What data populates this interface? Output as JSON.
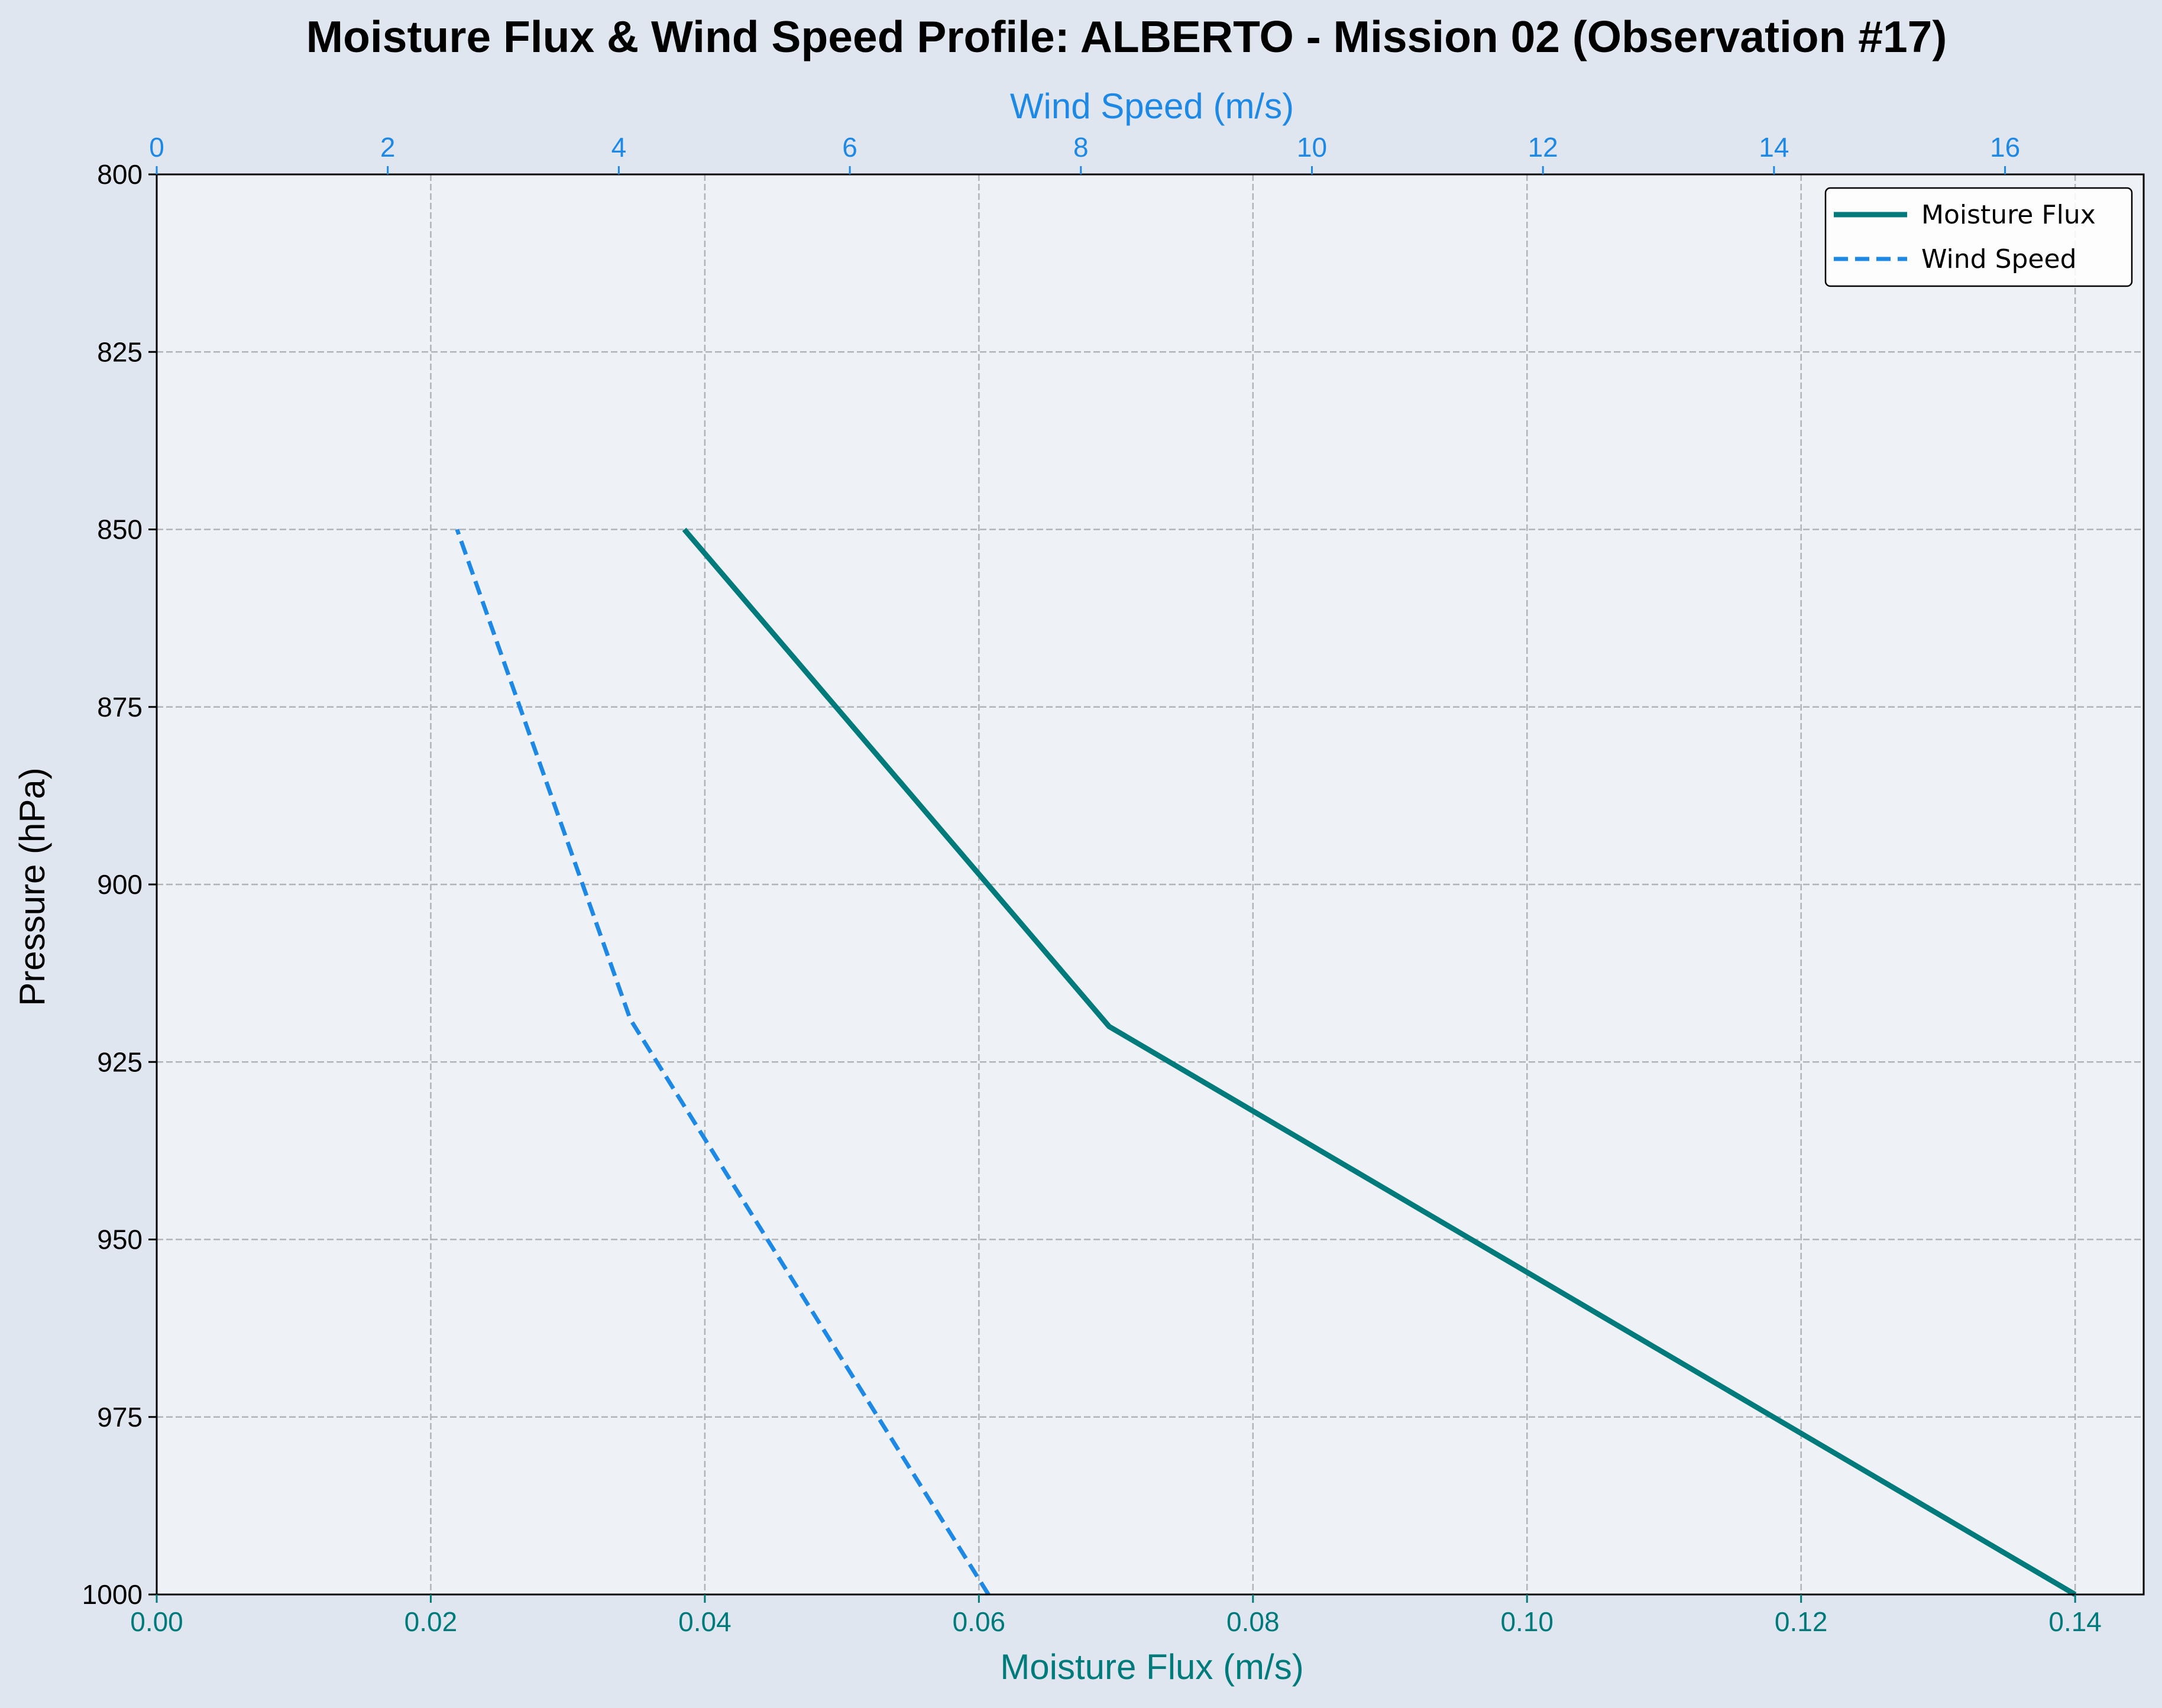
{
  "chart_data": {
    "type": "line",
    "title": "Moisture Flux & Wind Speed Profile: ALBERTO - Mission 02 (Observation #17)",
    "ylabel": "Pressure (hPa)",
    "xlabel_bottom": "Moisture Flux (m/s)",
    "xlabel_top": "Wind Speed (m/s)",
    "y_axis": {
      "range": [
        800,
        1000
      ],
      "inverted": true,
      "ticks": [
        800,
        825,
        850,
        875,
        900,
        925,
        950,
        975,
        1000
      ]
    },
    "x_bottom_axis": {
      "range": [
        0.0,
        0.145
      ],
      "ticks": [
        0.0,
        0.02,
        0.04,
        0.06,
        0.08,
        0.1,
        0.12,
        0.14
      ],
      "tick_labels": [
        "0.00",
        "0.02",
        "0.04",
        "0.06",
        "0.08",
        "0.10",
        "0.12",
        "0.14"
      ]
    },
    "x_top_axis": {
      "range": [
        0,
        17.2
      ],
      "ticks": [
        0,
        2,
        4,
        6,
        8,
        10,
        12,
        14,
        16
      ],
      "tick_labels": [
        "0",
        "2",
        "4",
        "6",
        "8",
        "10",
        "12",
        "14",
        "16"
      ]
    },
    "grid": true,
    "legend_position": "top-right",
    "series": [
      {
        "name": "Moisture Flux",
        "axis": "bottom",
        "color": "#007a7a",
        "style": "solid",
        "points": [
          [
            0.14,
            1000
          ],
          [
            0.0695,
            920
          ],
          [
            0.0385,
            850
          ]
        ]
      },
      {
        "name": "Wind Speed",
        "axis": "top",
        "color": "#1e88e5",
        "style": "dashed",
        "points": [
          [
            7.2,
            1000
          ],
          [
            4.1,
            919
          ],
          [
            2.6,
            850
          ]
        ]
      }
    ],
    "colors": {
      "figure_background": "#e0e6ef",
      "plot_background": "#eef2f7",
      "grid": "#b0b3b8",
      "bottom_axis": "#007a7a",
      "top_axis": "#1e88e5"
    }
  }
}
